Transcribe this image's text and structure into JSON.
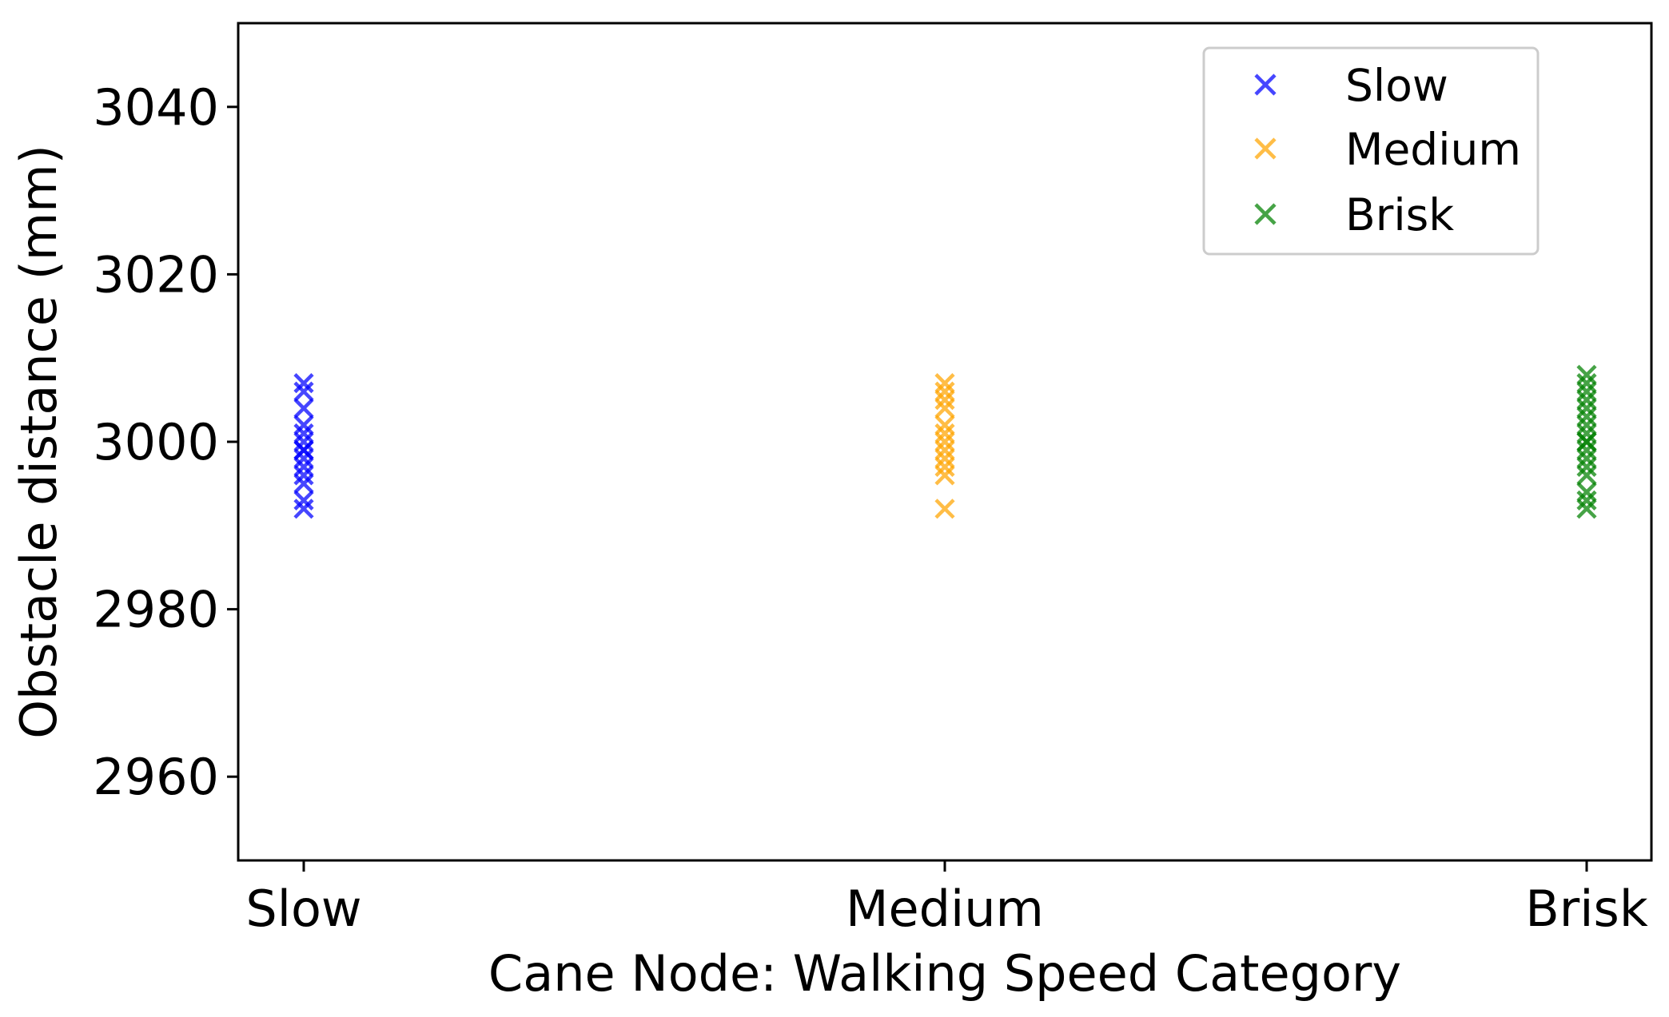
{
  "chart_data": {
    "type": "scatter",
    "title": "",
    "xlabel": "Cane Node: Walking Speed Category",
    "ylabel": "Obstacle distance (mm)",
    "categories": [
      "Slow",
      "Medium",
      "Brisk"
    ],
    "ylim": [
      2950,
      3050
    ],
    "yticks": [
      2960,
      2980,
      3000,
      3020,
      3040
    ],
    "ytick_labels": [
      "2960",
      "2980",
      "3000",
      "3020",
      "3040"
    ],
    "grid": false,
    "legend_position": "top-right",
    "marker": "x",
    "series": [
      {
        "name": "Slow",
        "color": "#0000ff",
        "category": "Slow",
        "values": [
          2992,
          2993,
          2995,
          2996,
          2997,
          2998,
          2999,
          2999,
          3000,
          3001,
          3002,
          3004,
          3006,
          3007
        ]
      },
      {
        "name": "Medium",
        "color": "#ffa500",
        "category": "Medium",
        "values": [
          2992,
          2996,
          2997,
          2998,
          2999,
          3000,
          3001,
          3002,
          3004,
          3005,
          3006,
          3007
        ]
      },
      {
        "name": "Brisk",
        "color": "#008000",
        "category": "Brisk",
        "values": [
          2992,
          2993,
          2994,
          2996,
          2997,
          2998,
          2999,
          3000,
          3000,
          3001,
          3002,
          3003,
          3004,
          3005,
          3006,
          3007,
          3008
        ]
      }
    ]
  }
}
